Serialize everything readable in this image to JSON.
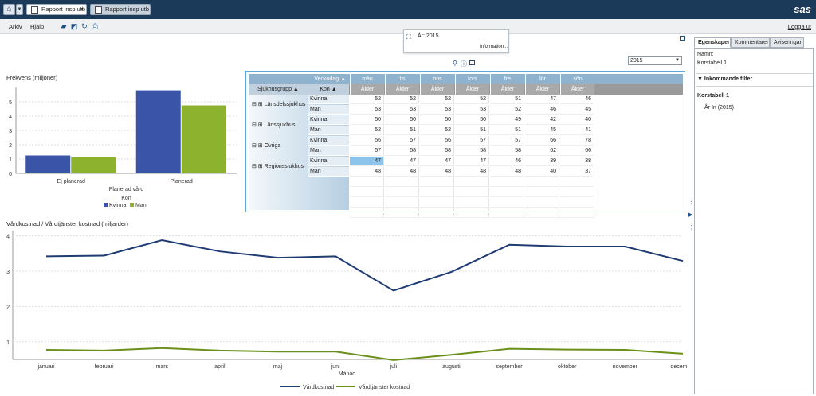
{
  "topbar": {
    "tabs": [
      {
        "label": "Rapport insp utb",
        "close": "×"
      },
      {
        "label": "Rapport insp utb"
      }
    ],
    "logo": "sas"
  },
  "menubar": {
    "items": [
      "Arkiv",
      "Hjälp"
    ],
    "icons": [
      "folder-icon",
      "edit-icon",
      "refresh-icon",
      "print-icon"
    ],
    "logout": "Logga ut"
  },
  "tooltip": {
    "text": "År: 2015",
    "link": "Information..."
  },
  "year_select": {
    "value": "2015"
  },
  "bar_chart": {
    "title": "Frekvens (miljoner)",
    "xlabel": "Planerad vård",
    "legend_title": "Kön",
    "legend": [
      "Kvinna",
      "Man"
    ]
  },
  "line_chart": {
    "title": "Vårdkostnad / Vårdtjänster kostnad (miljarder)",
    "xlabel": "Månad",
    "legend": [
      "Vårdkostnad",
      "Vårdtjänster kostnad"
    ]
  },
  "colors": {
    "kvinna": "#3a55a8",
    "man": "#8db32e",
    "vardkostnad": "#1f3b73",
    "vardtjanster": "#6a8f1a"
  },
  "chart_data": [
    {
      "type": "bar",
      "title": "Frekvens (miljoner)",
      "xlabel": "Planerad vård",
      "ylabel": "",
      "categories": [
        "Ej planerad",
        "Planerad"
      ],
      "series": [
        {
          "name": "Kvinna",
          "values": [
            1.25,
            5.8
          ]
        },
        {
          "name": "Man",
          "values": [
            1.12,
            4.75
          ]
        }
      ],
      "ylim": [
        0,
        6
      ],
      "yticks": [
        0,
        1,
        2,
        3,
        4,
        5
      ],
      "legend_title": "Kön",
      "legend_position": "bottom",
      "grid": true
    },
    {
      "type": "line",
      "title": "Vårdkostnad / Vårdtjänster kostnad (miljarder)",
      "xlabel": "Månad",
      "ylabel": "",
      "categories": [
        "januari",
        "februari",
        "mars",
        "april",
        "maj",
        "juni",
        "juli",
        "augusti",
        "september",
        "oktober",
        "november",
        "december"
      ],
      "series": [
        {
          "name": "Vårdkostnad",
          "values": [
            3.42,
            3.44,
            3.88,
            3.56,
            3.38,
            3.42,
            2.45,
            2.98,
            3.75,
            3.7,
            3.7,
            3.29
          ]
        },
        {
          "name": "Vårdtjänster kostnad",
          "values": [
            0.77,
            0.75,
            0.82,
            0.75,
            0.72,
            0.72,
            0.48,
            0.63,
            0.8,
            0.78,
            0.77,
            0.66
          ]
        }
      ],
      "ylim": [
        0.5,
        4.15
      ],
      "yticks": [
        1,
        2,
        3,
        4
      ],
      "legend_position": "bottom",
      "grid": true
    },
    {
      "type": "table",
      "row_header": "Sjukhusgrupp",
      "sub_header": "Kön",
      "col_header": "Veckodag",
      "measure": "Ålder",
      "columns": [
        "mån",
        "tis",
        "ons",
        "tors",
        "fre",
        "lör",
        "sön"
      ],
      "groups": [
        {
          "name": "Länsdelssjukhus",
          "rows": [
            {
              "kon": "Kvinna",
              "values": [
                52,
                52,
                52,
                52,
                51,
                47,
                46
              ]
            },
            {
              "kon": "Man",
              "values": [
                53,
                53,
                53,
                53,
                52,
                46,
                45
              ]
            }
          ]
        },
        {
          "name": "Länssjukhus",
          "rows": [
            {
              "kon": "Kvinna",
              "values": [
                50,
                50,
                50,
                50,
                49,
                42,
                40
              ]
            },
            {
              "kon": "Man",
              "values": [
                52,
                51,
                52,
                51,
                51,
                45,
                41
              ]
            }
          ]
        },
        {
          "name": "Övriga",
          "rows": [
            {
              "kon": "Kvinna",
              "values": [
                56,
                57,
                56,
                57,
                57,
                66,
                78
              ]
            },
            {
              "kon": "Man",
              "values": [
                57,
                58,
                58,
                58,
                58,
                62,
                66
              ]
            }
          ]
        },
        {
          "name": "Regionssjukhus",
          "rows": [
            {
              "kon": "Kvinna",
              "values": [
                47,
                47,
                47,
                47,
                46,
                39,
                38
              ]
            },
            {
              "kon": "Man",
              "values": [
                48,
                48,
                48,
                48,
                48,
                40,
                37
              ]
            }
          ]
        }
      ]
    }
  ],
  "right_panel": {
    "tabs": [
      "Egenskaper",
      "Kommentarer",
      "Aviseringar"
    ],
    "name_label": "Namn:",
    "name_value": "Korstabell 1",
    "incoming_filter": "Inkommande filter",
    "section": "Korstabell 1",
    "filter_value": "År In (2015)"
  }
}
